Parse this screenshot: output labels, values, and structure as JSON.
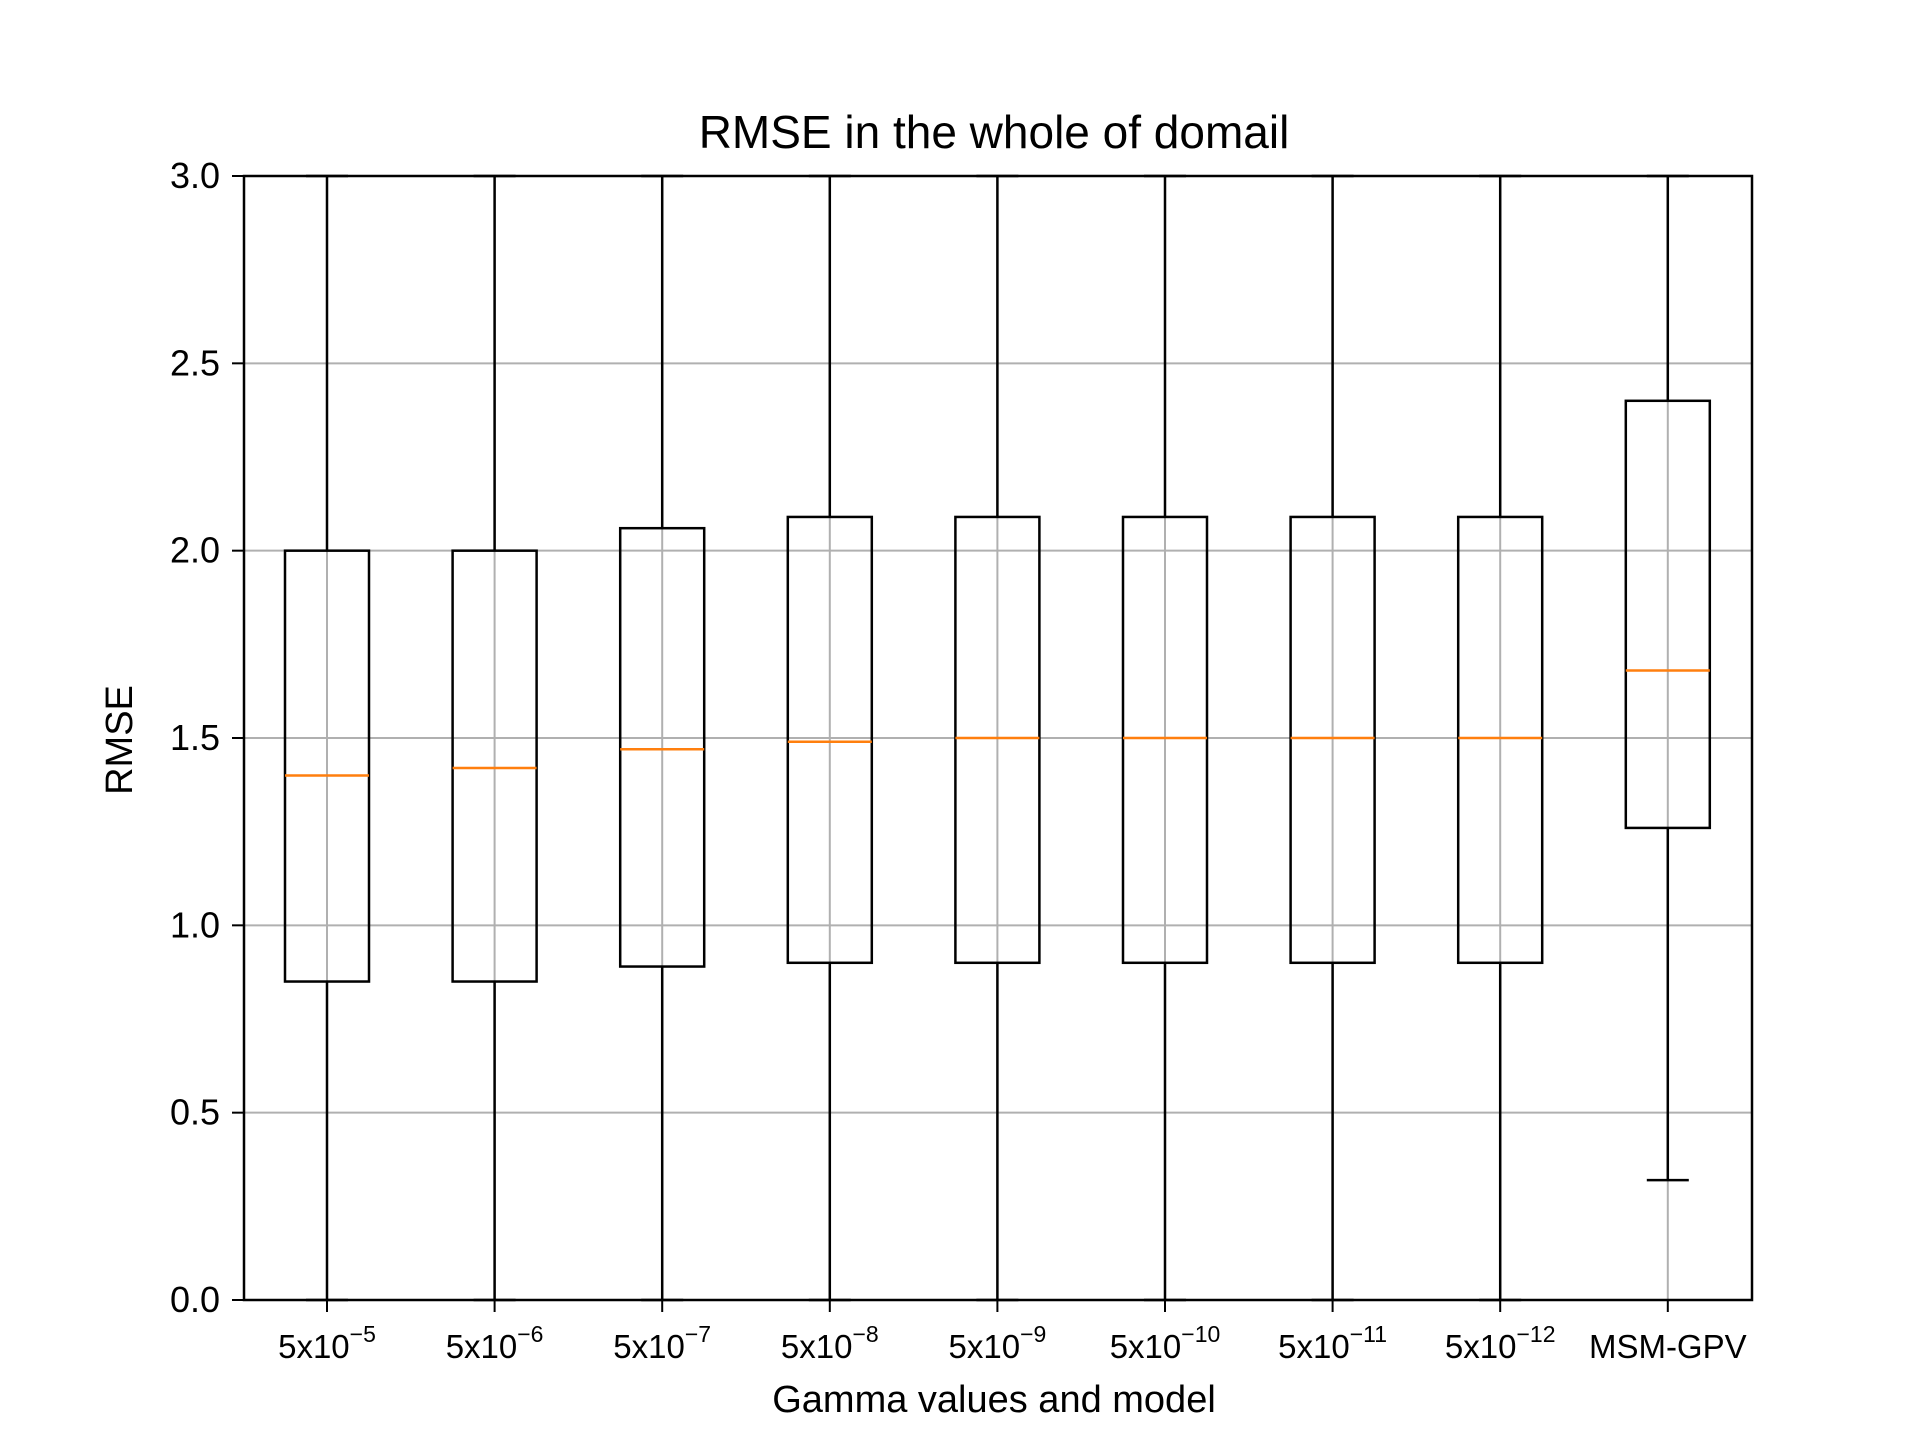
{
  "chart_data": {
    "type": "box",
    "title": "RMSE in the whole of domail",
    "xlabel": "Gamma values and model",
    "ylabel": "RMSE",
    "ylim": [
      0,
      3
    ],
    "yticks": [
      0.0,
      0.5,
      1.0,
      1.5,
      2.0,
      2.5,
      3.0
    ],
    "ytick_labels": [
      "0.0",
      "0.5",
      "1.0",
      "1.5",
      "2.0",
      "2.5",
      "3.0"
    ],
    "grid": true,
    "colors": {
      "box": "#000000",
      "median": "#ff7f0e",
      "grid": "#b0b0b0"
    },
    "categories": [
      {
        "base": "5x10",
        "exp": "−5"
      },
      {
        "base": "5x10",
        "exp": "−6"
      },
      {
        "base": "5x10",
        "exp": "−7"
      },
      {
        "base": "5x10",
        "exp": "−8"
      },
      {
        "base": "5x10",
        "exp": "−9"
      },
      {
        "base": "5x10",
        "exp": "−10"
      },
      {
        "base": "5x10",
        "exp": "−11"
      },
      {
        "base": "5x10",
        "exp": "−12"
      },
      {
        "base": "MSM-GPV",
        "exp": ""
      }
    ],
    "boxes": [
      {
        "whisker_low": 0.0,
        "q1": 0.85,
        "median": 1.4,
        "q3": 2.0,
        "whisker_high": 3.0
      },
      {
        "whisker_low": 0.0,
        "q1": 0.85,
        "median": 1.42,
        "q3": 2.0,
        "whisker_high": 3.0
      },
      {
        "whisker_low": 0.0,
        "q1": 0.89,
        "median": 1.47,
        "q3": 2.06,
        "whisker_high": 3.0
      },
      {
        "whisker_low": 0.0,
        "q1": 0.9,
        "median": 1.49,
        "q3": 2.09,
        "whisker_high": 3.0
      },
      {
        "whisker_low": 0.0,
        "q1": 0.9,
        "median": 1.5,
        "q3": 2.09,
        "whisker_high": 3.0
      },
      {
        "whisker_low": 0.0,
        "q1": 0.9,
        "median": 1.5,
        "q3": 2.09,
        "whisker_high": 3.0
      },
      {
        "whisker_low": 0.0,
        "q1": 0.9,
        "median": 1.5,
        "q3": 2.09,
        "whisker_high": 3.0
      },
      {
        "whisker_low": 0.0,
        "q1": 0.9,
        "median": 1.5,
        "q3": 2.09,
        "whisker_high": 3.0
      },
      {
        "whisker_low": 0.32,
        "q1": 1.26,
        "median": 1.68,
        "q3": 2.4,
        "whisker_high": 3.0
      }
    ]
  }
}
